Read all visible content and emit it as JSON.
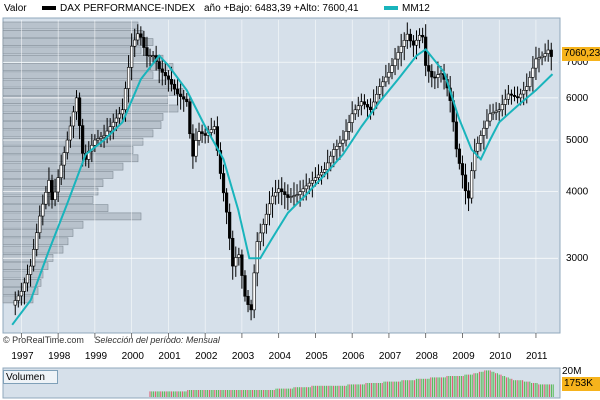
{
  "header": {
    "valor_label": "Valor",
    "series_label": "DAX PERFORMANCE-INDEX",
    "stats_label": "año +Bajo: 6483,39 +Alto: 7600,41",
    "ma_label": "MM12"
  },
  "footer": {
    "source": "© ProRealTime.com",
    "period": "Selección del período: Mensual"
  },
  "volume_panel": {
    "label": "Volumen",
    "scale_label": "20M",
    "last_volume": "1753K"
  },
  "last_price_tag": "7060,23",
  "colors": {
    "price": "#000000",
    "ma": "#19b4bc",
    "background": "#d6e0ea",
    "price_tag": "#f6b31c",
    "volume_up": "#4fb84f",
    "volume_down": "#e0506a",
    "profile_bar": "#b8c2cc"
  },
  "chart_data": {
    "type": "line",
    "title": "DAX PERFORMANCE-INDEX",
    "period": "monthly",
    "y_scale": "log",
    "ylim": [
      2200,
      8400
    ],
    "y_ticks": [
      3000,
      4000,
      5000,
      6000,
      7000
    ],
    "x_tick_labels": [
      "1997",
      "1998",
      "1999",
      "2000",
      "2001",
      "2002",
      "2003",
      "2004",
      "2005",
      "2006",
      "2007",
      "2008",
      "2009",
      "2010",
      "2011"
    ],
    "series": [
      {
        "name": "DAX PERFORMANCE-INDEX",
        "points": [
          [
            1996.75,
            2450
          ],
          [
            1997.0,
            2600
          ],
          [
            1997.25,
            2900
          ],
          [
            1997.5,
            3600
          ],
          [
            1997.75,
            4200
          ],
          [
            1997.85,
            3800
          ],
          [
            1998.0,
            4250
          ],
          [
            1998.25,
            5000
          ],
          [
            1998.5,
            6000
          ],
          [
            1998.7,
            4500
          ],
          [
            1998.85,
            4800
          ],
          [
            1999.0,
            5000
          ],
          [
            1999.25,
            5100
          ],
          [
            1999.5,
            5400
          ],
          [
            1999.75,
            5700
          ],
          [
            2000.0,
            7500
          ],
          [
            2000.2,
            8000
          ],
          [
            2000.4,
            7200
          ],
          [
            2000.6,
            7200
          ],
          [
            2000.75,
            6800
          ],
          [
            2001.0,
            6500
          ],
          [
            2001.25,
            6100
          ],
          [
            2001.5,
            5900
          ],
          [
            2001.65,
            4600
          ],
          [
            2001.8,
            5200
          ],
          [
            2002.0,
            5100
          ],
          [
            2002.25,
            5300
          ],
          [
            2002.4,
            4400
          ],
          [
            2002.6,
            3600
          ],
          [
            2002.75,
            2900
          ],
          [
            2002.9,
            3100
          ],
          [
            2003.1,
            2500
          ],
          [
            2003.25,
            2400
          ],
          [
            2003.4,
            3200
          ],
          [
            2003.6,
            3500
          ],
          [
            2003.8,
            3900
          ],
          [
            2004.0,
            4050
          ],
          [
            2004.25,
            3900
          ],
          [
            2004.5,
            3950
          ],
          [
            2004.75,
            4100
          ],
          [
            2005.0,
            4250
          ],
          [
            2005.25,
            4400
          ],
          [
            2005.5,
            4800
          ],
          [
            2005.75,
            5000
          ],
          [
            2006.0,
            5600
          ],
          [
            2006.25,
            5900
          ],
          [
            2006.5,
            5700
          ],
          [
            2006.75,
            6300
          ],
          [
            2007.0,
            6700
          ],
          [
            2007.25,
            7300
          ],
          [
            2007.5,
            7900
          ],
          [
            2007.65,
            7500
          ],
          [
            2007.9,
            8000
          ],
          [
            2008.0,
            6900
          ],
          [
            2008.2,
            6500
          ],
          [
            2008.4,
            6700
          ],
          [
            2008.55,
            6400
          ],
          [
            2008.7,
            5800
          ],
          [
            2008.85,
            4700
          ],
          [
            2009.0,
            4300
          ],
          [
            2009.15,
            3800
          ],
          [
            2009.3,
            4700
          ],
          [
            2009.5,
            5100
          ],
          [
            2009.75,
            5600
          ],
          [
            2010.0,
            5700
          ],
          [
            2010.25,
            6100
          ],
          [
            2010.5,
            6000
          ],
          [
            2010.75,
            6300
          ],
          [
            2011.0,
            7100
          ],
          [
            2011.2,
            7200
          ],
          [
            2011.35,
            7400
          ],
          [
            2011.45,
            7060
          ]
        ]
      },
      {
        "name": "MM12",
        "points": [
          [
            1996.75,
            2250
          ],
          [
            1997.25,
            2500
          ],
          [
            1997.75,
            3100
          ],
          [
            1998.25,
            3800
          ],
          [
            1998.75,
            4700
          ],
          [
            1999.25,
            5000
          ],
          [
            1999.75,
            5400
          ],
          [
            2000.25,
            6500
          ],
          [
            2000.75,
            7200
          ],
          [
            2001.0,
            6900
          ],
          [
            2001.5,
            6200
          ],
          [
            2002.0,
            5300
          ],
          [
            2002.5,
            4600
          ],
          [
            2002.9,
            3700
          ],
          [
            2003.2,
            3000
          ],
          [
            2003.5,
            3000
          ],
          [
            2003.8,
            3250
          ],
          [
            2004.25,
            3650
          ],
          [
            2004.75,
            3950
          ],
          [
            2005.25,
            4300
          ],
          [
            2005.75,
            4700
          ],
          [
            2006.25,
            5300
          ],
          [
            2006.75,
            5900
          ],
          [
            2007.25,
            6500
          ],
          [
            2007.75,
            7200
          ],
          [
            2008.0,
            7400
          ],
          [
            2008.5,
            6700
          ],
          [
            2008.9,
            5500
          ],
          [
            2009.25,
            4800
          ],
          [
            2009.5,
            4600
          ],
          [
            2009.75,
            5000
          ],
          [
            2010.0,
            5400
          ],
          [
            2010.5,
            5800
          ],
          [
            2011.0,
            6200
          ],
          [
            2011.45,
            6650
          ]
        ]
      }
    ],
    "volume": [
      4,
      4,
      4,
      4,
      4,
      4,
      4,
      4,
      4,
      4,
      4,
      4,
      4,
      4,
      4,
      4,
      4,
      4,
      4,
      4,
      4,
      5,
      5,
      5,
      5,
      5,
      5,
      5,
      5,
      5,
      5,
      5,
      5,
      5,
      5,
      5,
      5,
      5,
      5,
      5,
      5,
      5,
      5,
      5,
      5,
      5,
      5,
      5,
      5,
      5,
      5,
      5,
      5,
      5,
      5,
      5,
      5,
      5,
      5,
      5,
      5,
      5,
      5,
      5,
      5,
      5,
      5,
      5,
      5,
      5,
      6,
      6,
      6,
      6,
      6,
      6,
      6,
      6,
      6,
      6,
      7,
      7,
      7,
      7,
      7,
      7,
      7,
      7,
      7,
      7,
      8,
      8,
      8,
      8,
      8,
      8,
      8,
      8,
      8,
      8,
      8,
      8,
      8,
      8,
      8,
      8,
      8,
      8,
      8,
      8,
      9,
      9,
      9,
      9,
      9,
      9,
      9,
      9,
      9,
      9,
      10,
      10,
      10,
      10,
      10,
      10,
      10,
      10,
      10,
      10,
      11,
      11,
      11,
      11,
      11,
      11,
      11,
      11,
      11,
      11,
      12,
      12,
      12,
      12,
      12,
      12,
      12,
      12,
      13,
      13,
      13,
      13,
      13,
      13,
      13,
      13,
      14,
      14,
      14,
      14,
      14,
      14,
      14,
      14,
      14,
      15,
      15,
      15,
      15,
      15,
      15,
      15,
      15,
      15,
      15,
      16,
      16,
      16,
      16,
      16,
      17,
      17,
      17,
      18,
      18,
      18,
      19,
      19,
      19,
      19,
      18,
      18,
      17,
      17,
      16,
      16,
      15,
      15,
      14,
      14,
      13,
      13,
      12,
      12,
      12,
      12,
      12,
      12,
      11,
      11,
      11,
      11,
      10,
      10,
      10,
      10,
      9,
      9,
      9,
      9,
      9,
      9,
      9,
      9,
      9
    ],
    "volume_unit": "M"
  }
}
